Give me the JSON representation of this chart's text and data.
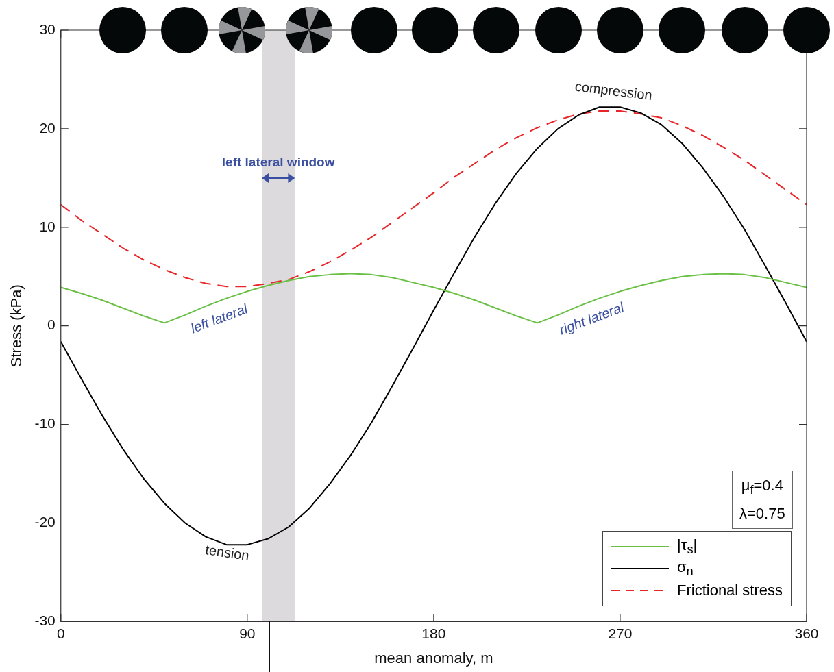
{
  "chart_data": {
    "type": "line",
    "xlabel": "mean anomaly, m",
    "ylabel": "Stress (kPa)",
    "x": [
      0,
      10,
      20,
      30,
      40,
      50,
      60,
      70,
      80,
      90,
      100,
      110,
      120,
      130,
      140,
      150,
      160,
      170,
      180,
      190,
      200,
      210,
      220,
      230,
      240,
      250,
      260,
      270,
      280,
      290,
      300,
      310,
      320,
      330,
      340,
      350,
      360
    ],
    "series": [
      {
        "name": "|τ$_{s}$|",
        "color": "#6abf45",
        "line_style": "solid",
        "values": [
          3.9,
          3.3,
          2.6,
          1.8,
          1.0,
          0.3,
          1.1,
          2.0,
          2.8,
          3.5,
          4.1,
          4.6,
          5.0,
          5.2,
          5.3,
          5.2,
          4.9,
          4.4,
          3.9,
          3.3,
          2.6,
          1.8,
          1.0,
          0.3,
          1.1,
          2.0,
          2.8,
          3.5,
          4.1,
          4.6,
          5.0,
          5.2,
          5.3,
          5.2,
          4.9,
          4.4,
          3.9
        ]
      },
      {
        "name": "σ$_{n}$",
        "color": "#000000",
        "line_style": "solid",
        "values": [
          -1.6,
          -5.4,
          -9.1,
          -12.5,
          -15.5,
          -18.0,
          -20.0,
          -21.4,
          -22.2,
          -22.2,
          -21.6,
          -20.4,
          -18.5,
          -16.0,
          -13.1,
          -9.8,
          -6.1,
          -2.3,
          1.6,
          5.4,
          9.1,
          12.5,
          15.5,
          18.0,
          20.0,
          21.4,
          22.2,
          22.2,
          21.6,
          20.4,
          18.5,
          16.0,
          13.1,
          9.8,
          6.1,
          2.3,
          -1.6
        ]
      },
      {
        "name": "Frictional stress",
        "color": "#e8262a",
        "line_style": "dashed",
        "values": [
          12.3,
          10.7,
          9.3,
          7.9,
          6.7,
          5.7,
          4.9,
          4.3,
          4.0,
          4.0,
          4.3,
          4.7,
          5.5,
          6.5,
          7.7,
          9.0,
          10.5,
          12.0,
          13.5,
          15.1,
          16.5,
          17.9,
          19.1,
          20.1,
          20.9,
          21.5,
          21.8,
          21.8,
          21.5,
          21.1,
          20.3,
          19.3,
          18.1,
          16.8,
          15.3,
          13.8,
          12.3
        ]
      }
    ],
    "xlim": [
      0,
      360
    ],
    "xticks": [
      0,
      90,
      180,
      270,
      360
    ],
    "ylim": [
      -30,
      30
    ],
    "yticks": [
      -30,
      -20,
      -10,
      0,
      10,
      20,
      30
    ],
    "bands": [
      {
        "axis": "x",
        "from": 97,
        "to": 113,
        "label": "left lateral window",
        "color": "#dcdadc"
      }
    ],
    "annotations": [
      "left lateral",
      "right lateral",
      "compression",
      "tension",
      "μ$_{f}$=0.4",
      "λ=0.75"
    ],
    "grid": false,
    "legend": "bottom right",
    "marker": "none"
  }
}
